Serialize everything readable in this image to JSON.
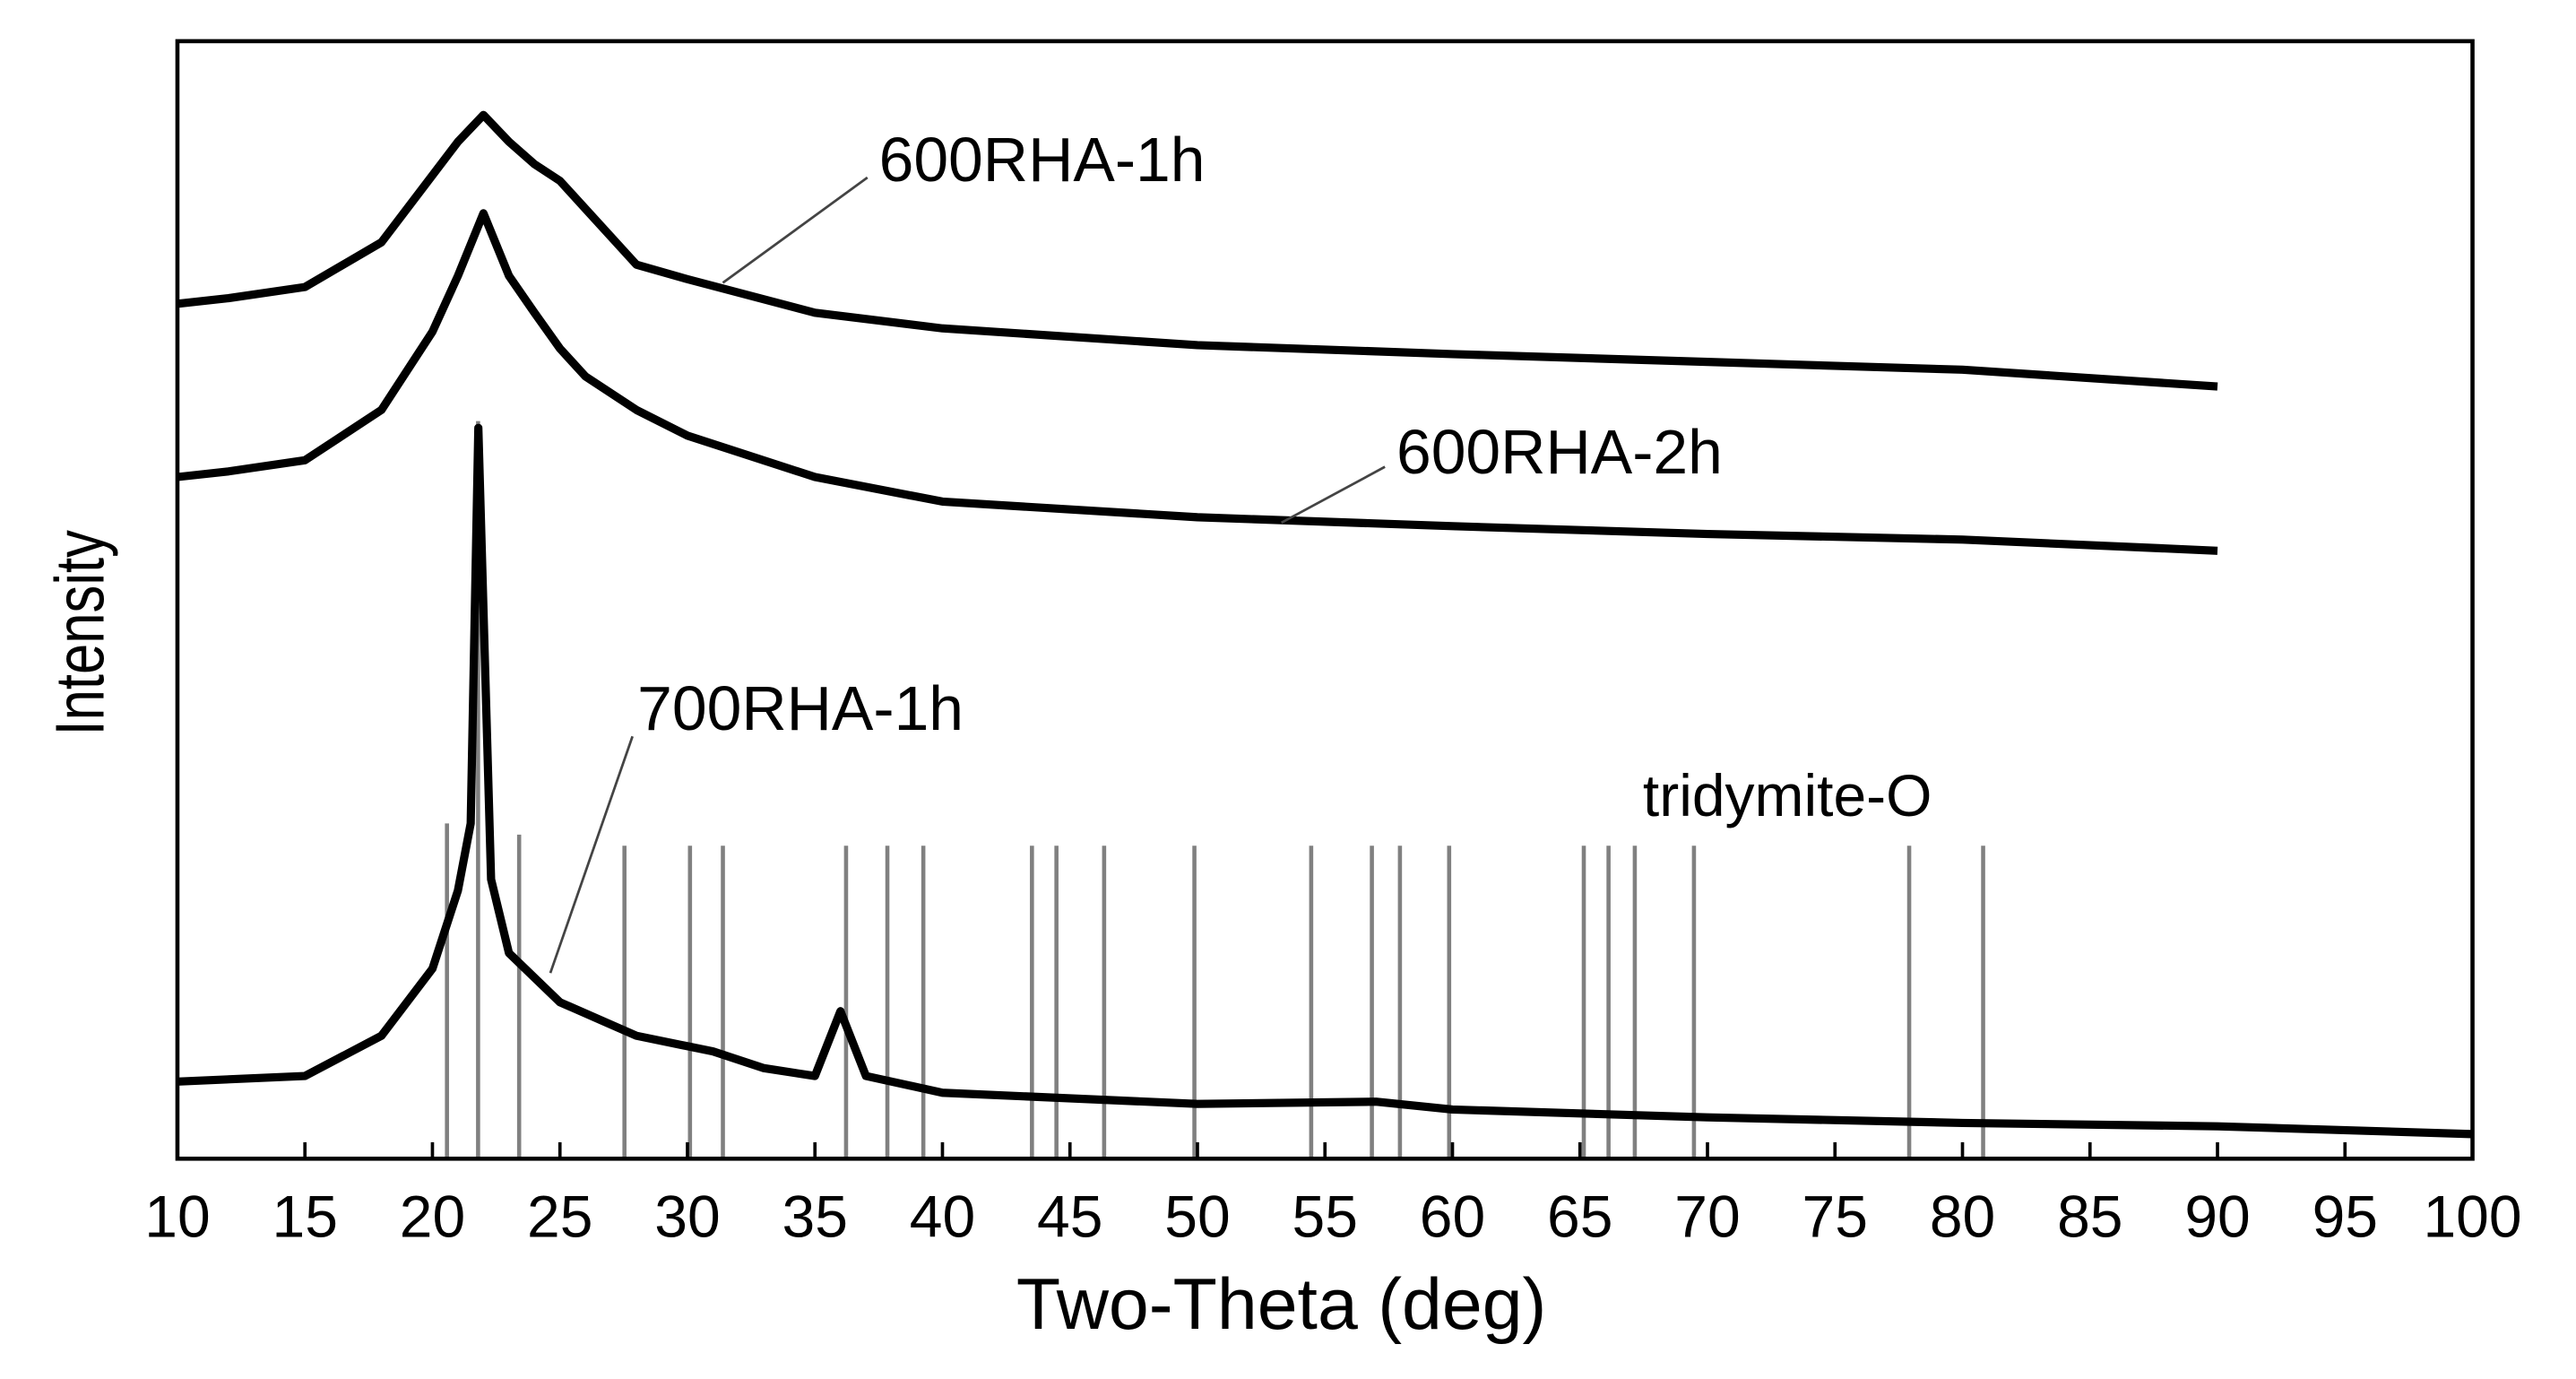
{
  "chart_data": {
    "type": "line",
    "xlabel": "Two-Theta (deg)",
    "ylabel": "Intensity",
    "xlim": [
      10,
      100
    ],
    "xticks": [
      10,
      15,
      20,
      25,
      30,
      35,
      40,
      45,
      50,
      55,
      60,
      65,
      70,
      75,
      80,
      85,
      90,
      95,
      100
    ],
    "ylim": [
      0,
      100
    ],
    "grid": false,
    "series": [
      {
        "name": "600RHA-1h",
        "color": "#000000",
        "x": [
          10,
          12,
          15,
          18,
          20,
          21,
          22,
          23,
          24,
          25,
          26,
          28,
          30,
          35,
          40,
          50,
          60,
          70,
          80,
          90
        ],
        "values": [
          76.5,
          77,
          78,
          82,
          88,
          91,
          93.4,
          91,
          89,
          87.5,
          85,
          80,
          78.7,
          75.7,
          74.3,
          72.8,
          72,
          71.3,
          70.6,
          69.1
        ]
      },
      {
        "name": "600RHA-2h",
        "color": "#000000",
        "x": [
          10,
          12,
          15,
          18,
          20,
          21,
          22,
          23,
          24,
          25,
          26,
          28,
          30,
          35,
          40,
          50,
          60,
          70,
          80,
          90
        ],
        "values": [
          61,
          61.5,
          62.5,
          67,
          74,
          79,
          84.6,
          79,
          75.7,
          72.5,
          70,
          67,
          64.7,
          61,
          58.8,
          57.4,
          56.6,
          55.9,
          55.4,
          54.4
        ]
      },
      {
        "name": "700RHA-1h",
        "color": "#000000",
        "x": [
          10,
          15,
          18,
          20,
          21,
          21.5,
          21.8,
          22.3,
          23,
          25,
          28,
          31,
          33,
          35,
          36,
          37,
          40,
          50,
          57,
          60,
          70,
          80,
          90,
          100
        ],
        "values": [
          6.9,
          7.4,
          11,
          17,
          24,
          30,
          65.4,
          25,
          18.4,
          14,
          11,
          9.6,
          8.1,
          7.4,
          13.2,
          7.4,
          5.9,
          4.9,
          5.1,
          4.4,
          3.7,
          3.2,
          2.9,
          2.2
        ]
      }
    ],
    "reference": {
      "name": "tridymite-O",
      "color": "#808080",
      "positions": [
        20.57,
        21.79,
        23.4,
        27.53,
        30.1,
        31.39,
        36.22,
        37.84,
        39.25,
        43.51,
        44.47,
        46.34,
        49.88,
        54.46,
        56.84,
        57.94,
        59.87,
        65.15,
        66.12,
        67.15,
        69.47,
        77.91,
        80.81
      ],
      "heights": [
        30,
        66,
        29,
        28,
        28,
        28,
        28,
        28,
        28,
        28,
        28,
        28,
        28,
        28,
        28,
        28,
        28,
        28,
        28,
        28,
        28,
        28,
        28
      ]
    }
  }
}
